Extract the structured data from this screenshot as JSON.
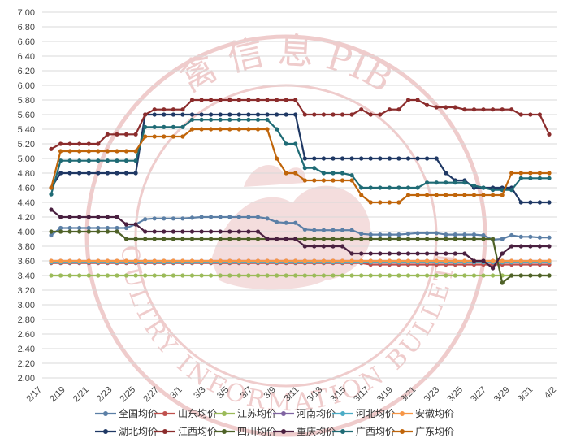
{
  "chart_data": {
    "type": "line",
    "title": "",
    "xlabel": "",
    "ylabel": "",
    "ylim": [
      2.0,
      7.0
    ],
    "y_ticks": [
      "7.00",
      "6.80",
      "6.60",
      "6.40",
      "6.20",
      "6.00",
      "5.80",
      "5.60",
      "5.40",
      "5.20",
      "5.00",
      "4.80",
      "4.60",
      "4.40",
      "4.20",
      "4.00",
      "3.80",
      "3.60",
      "3.40",
      "3.20",
      "3.00",
      "2.80",
      "2.60",
      "2.40",
      "2.20",
      "2.00"
    ],
    "x_tick_labels": [
      "2/17",
      "2/19",
      "2/21",
      "2/23",
      "2/25",
      "2/27",
      "3/1",
      "3/3",
      "3/5",
      "3/7",
      "3/9",
      "3/11",
      "3/13",
      "3/15",
      "3/17",
      "3/19",
      "3/21",
      "3/23",
      "3/25",
      "3/27",
      "3/29",
      "3/31",
      "4/2"
    ],
    "grid": true,
    "legend_position": "bottom",
    "series": [
      {
        "name": "全国均价",
        "color": "#5b7fa6",
        "values": [
          3.95,
          4.05,
          4.05,
          4.05,
          4.05,
          4.05,
          4.05,
          4.05,
          4.05,
          4.1,
          4.17,
          4.18,
          4.18,
          4.18,
          4.18,
          4.19,
          4.2,
          4.2,
          4.2,
          4.2,
          4.2,
          4.2,
          4.2,
          4.18,
          4.13,
          4.12,
          4.12,
          4.03,
          4.02,
          4.02,
          4.02,
          4.02,
          4.02,
          3.97,
          3.96,
          3.96,
          3.96,
          3.96,
          3.97,
          3.98,
          3.98,
          3.98,
          3.96,
          3.96,
          3.96,
          3.96,
          3.95,
          3.89,
          3.9,
          3.95,
          3.93,
          3.93,
          3.92,
          3.92
        ]
      },
      {
        "name": "山东均价",
        "color": "#c0504d",
        "values": [
          3.57,
          3.57,
          3.57,
          3.57,
          3.57,
          3.57,
          3.57,
          3.57,
          3.57,
          3.57,
          3.57,
          3.57,
          3.57,
          3.57,
          3.57,
          3.57,
          3.57,
          3.57,
          3.57,
          3.57,
          3.57,
          3.57,
          3.57,
          3.57,
          3.57,
          3.57,
          3.57,
          3.57,
          3.57,
          3.57,
          3.57,
          3.57,
          3.57,
          3.57,
          3.55,
          3.55,
          3.55,
          3.55,
          3.55,
          3.55,
          3.55,
          3.55,
          3.55,
          3.55,
          3.55,
          3.55,
          3.55,
          3.55,
          3.55,
          3.55,
          3.55,
          3.55,
          3.55,
          3.55
        ]
      },
      {
        "name": "江苏均价",
        "color": "#9bbb59",
        "values": [
          3.4,
          3.4,
          3.4,
          3.4,
          3.4,
          3.4,
          3.4,
          3.4,
          3.4,
          3.4,
          3.4,
          3.4,
          3.4,
          3.4,
          3.4,
          3.4,
          3.4,
          3.4,
          3.4,
          3.4,
          3.4,
          3.4,
          3.4,
          3.4,
          3.4,
          3.4,
          3.4,
          3.4,
          3.4,
          3.4,
          3.4,
          3.4,
          3.4,
          3.4,
          3.4,
          3.4,
          3.4,
          3.4,
          3.4,
          3.4,
          3.4,
          3.4,
          3.4,
          3.4,
          3.4,
          3.4,
          3.4,
          3.4,
          3.4,
          3.4,
          3.4,
          3.4,
          3.4,
          3.4
        ]
      },
      {
        "name": "河南均价",
        "color": "#8064a2",
        "values": [
          3.6,
          3.6,
          3.6,
          3.6,
          3.6,
          3.6,
          3.6,
          3.6,
          3.6,
          3.6,
          3.6,
          3.6,
          3.6,
          3.6,
          3.6,
          3.6,
          3.6,
          3.6,
          3.6,
          3.6,
          3.6,
          3.6,
          3.6,
          3.6,
          3.6,
          3.6,
          3.6,
          3.6,
          3.6,
          3.6,
          3.6,
          3.6,
          3.6,
          3.6,
          3.6,
          3.6,
          3.6,
          3.6,
          3.6,
          3.6,
          3.6,
          3.6,
          3.6,
          3.6,
          3.6,
          3.6,
          3.6,
          3.6,
          3.6,
          3.6,
          3.6,
          3.6,
          3.6,
          3.6
        ]
      },
      {
        "name": "河北均价",
        "color": "#4bacc6",
        "values": [
          3.58,
          3.58,
          3.58,
          3.58,
          3.58,
          3.58,
          3.58,
          3.58,
          3.58,
          3.58,
          3.58,
          3.58,
          3.58,
          3.58,
          3.58,
          3.58,
          3.58,
          3.58,
          3.58,
          3.58,
          3.58,
          3.58,
          3.58,
          3.58,
          3.58,
          3.58,
          3.58,
          3.58,
          3.58,
          3.58,
          3.58,
          3.58,
          3.58,
          3.58,
          3.58,
          3.58,
          3.58,
          3.58,
          3.58,
          3.58,
          3.58,
          3.58,
          3.58,
          3.58,
          3.58,
          3.58,
          3.58,
          3.58,
          3.58,
          3.58,
          3.58,
          3.58,
          3.58,
          3.58
        ]
      },
      {
        "name": "安徽均价",
        "color": "#f79646",
        "values": [
          3.6,
          3.6,
          3.6,
          3.6,
          3.6,
          3.6,
          3.6,
          3.6,
          3.6,
          3.6,
          3.6,
          3.6,
          3.6,
          3.6,
          3.6,
          3.6,
          3.6,
          3.6,
          3.6,
          3.6,
          3.6,
          3.6,
          3.6,
          3.6,
          3.6,
          3.6,
          3.6,
          3.6,
          3.6,
          3.6,
          3.6,
          3.6,
          3.6,
          3.6,
          3.6,
          3.6,
          3.6,
          3.6,
          3.6,
          3.6,
          3.6,
          3.6,
          3.6,
          3.6,
          3.6,
          3.6,
          3.6,
          3.6,
          3.6,
          3.6,
          3.6,
          3.6,
          3.6,
          3.6
        ]
      },
      {
        "name": "湖北均价",
        "color": "#1f3864",
        "values": [
          4.6,
          4.8,
          4.8,
          4.8,
          4.8,
          4.8,
          4.8,
          4.8,
          4.8,
          4.8,
          5.6,
          5.6,
          5.6,
          5.6,
          5.6,
          5.6,
          5.6,
          5.6,
          5.6,
          5.6,
          5.6,
          5.6,
          5.6,
          5.6,
          5.6,
          5.6,
          5.6,
          5.0,
          5.0,
          5.0,
          5.0,
          5.0,
          5.0,
          5.0,
          5.0,
          5.0,
          5.0,
          5.0,
          5.0,
          5.0,
          5.0,
          5.0,
          4.8,
          4.7,
          4.7,
          4.6,
          4.6,
          4.6,
          4.6,
          4.6,
          4.4,
          4.4,
          4.4,
          4.4
        ]
      },
      {
        "name": "江西均价",
        "color": "#8b2c2c",
        "values": [
          5.13,
          5.2,
          5.2,
          5.2,
          5.2,
          5.2,
          5.33,
          5.33,
          5.33,
          5.33,
          5.6,
          5.67,
          5.67,
          5.67,
          5.67,
          5.8,
          5.8,
          5.8,
          5.8,
          5.8,
          5.8,
          5.8,
          5.8,
          5.8,
          5.8,
          5.8,
          5.8,
          5.6,
          5.6,
          5.6,
          5.6,
          5.6,
          5.6,
          5.67,
          5.6,
          5.6,
          5.67,
          5.67,
          5.8,
          5.8,
          5.73,
          5.7,
          5.7,
          5.7,
          5.67,
          5.67,
          5.67,
          5.67,
          5.67,
          5.67,
          5.6,
          5.6,
          5.6,
          5.33
        ]
      },
      {
        "name": "四川均价",
        "color": "#4f6228",
        "values": [
          4.0,
          4.0,
          4.0,
          4.0,
          4.0,
          4.0,
          4.0,
          4.0,
          3.9,
          3.9,
          3.9,
          3.9,
          3.9,
          3.9,
          3.9,
          3.9,
          3.9,
          3.9,
          3.9,
          3.9,
          3.9,
          3.9,
          3.9,
          3.9,
          3.9,
          3.9,
          3.9,
          3.9,
          3.9,
          3.9,
          3.9,
          3.9,
          3.9,
          3.9,
          3.9,
          3.9,
          3.9,
          3.9,
          3.9,
          3.9,
          3.9,
          3.9,
          3.9,
          3.9,
          3.9,
          3.9,
          3.9,
          3.9,
          3.3,
          3.4,
          3.4,
          3.4,
          3.4,
          3.4
        ]
      },
      {
        "name": "重庆均价",
        "color": "#4a2040",
        "values": [
          4.3,
          4.2,
          4.2,
          4.2,
          4.2,
          4.2,
          4.2,
          4.2,
          4.1,
          4.1,
          4.0,
          4.0,
          4.0,
          4.0,
          4.0,
          4.0,
          4.0,
          4.0,
          4.0,
          4.0,
          4.0,
          4.0,
          4.0,
          3.9,
          3.9,
          3.9,
          3.9,
          3.8,
          3.8,
          3.8,
          3.8,
          3.8,
          3.7,
          3.7,
          3.7,
          3.7,
          3.7,
          3.7,
          3.7,
          3.7,
          3.7,
          3.7,
          3.7,
          3.7,
          3.7,
          3.6,
          3.6,
          3.5,
          3.7,
          3.8,
          3.8,
          3.8,
          3.8,
          3.8
        ]
      },
      {
        "name": "广西均价",
        "color": "#1f6b75",
        "values": [
          4.51,
          4.97,
          4.97,
          4.97,
          4.97,
          4.97,
          4.97,
          4.97,
          4.97,
          4.97,
          5.43,
          5.43,
          5.43,
          5.43,
          5.43,
          5.53,
          5.53,
          5.53,
          5.53,
          5.53,
          5.53,
          5.53,
          5.53,
          5.53,
          5.4,
          5.2,
          5.2,
          4.87,
          4.87,
          4.8,
          4.8,
          4.8,
          4.77,
          4.6,
          4.6,
          4.6,
          4.6,
          4.6,
          4.6,
          4.6,
          4.67,
          4.67,
          4.67,
          4.67,
          4.67,
          4.63,
          4.6,
          4.57,
          4.57,
          4.57,
          4.73,
          4.73,
          4.73,
          4.73
        ]
      },
      {
        "name": "广东均价",
        "color": "#c0650a",
        "values": [
          4.6,
          5.1,
          5.1,
          5.1,
          5.1,
          5.1,
          5.1,
          5.1,
          5.1,
          5.1,
          5.3,
          5.3,
          5.3,
          5.3,
          5.3,
          5.4,
          5.4,
          5.4,
          5.4,
          5.4,
          5.4,
          5.4,
          5.4,
          5.4,
          5.0,
          4.8,
          4.8,
          4.7,
          4.7,
          4.7,
          4.7,
          4.7,
          4.7,
          4.5,
          4.4,
          4.4,
          4.4,
          4.4,
          4.5,
          4.5,
          4.5,
          4.5,
          4.5,
          4.5,
          4.5,
          4.5,
          4.5,
          4.5,
          4.5,
          4.8,
          4.8,
          4.8,
          4.8,
          4.8
        ]
      }
    ]
  },
  "watermark": {
    "top_text": "禽 信 息 PIB",
    "bottom_text": "POULTRY INFORMATION BULLETIN",
    "color": "#e3a4a4"
  }
}
